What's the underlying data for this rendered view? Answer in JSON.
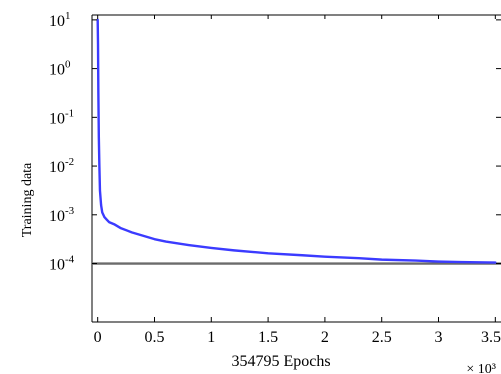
{
  "chart_data": {
    "type": "line",
    "ylabel": "Training data",
    "xlabel": "354795 Epochs",
    "x_multiplier_label": "× 10³",
    "x_scale": 1000,
    "y_scale": "log",
    "xlim": [
      -0.05,
      3.55
    ],
    "ylim_log10": [
      -5.2,
      1.1
    ],
    "x_ticks": [
      0,
      0.5,
      1,
      1.5,
      2,
      2.5,
      3,
      3.5
    ],
    "x_tick_labels": [
      "0",
      "0.5",
      "1",
      "1.5",
      "2",
      "2.5",
      "3",
      "3.5"
    ],
    "y_ticks_log10": [
      1,
      0,
      -1,
      -2,
      -3,
      -4
    ],
    "y_tick_labels": [
      {
        "base": "10",
        "exp": "1"
      },
      {
        "base": "10",
        "exp": "0"
      },
      {
        "base": "10",
        "exp": "-1"
      },
      {
        "base": "10",
        "exp": "-2"
      },
      {
        "base": "10",
        "exp": "-3"
      },
      {
        "base": "10",
        "exp": "-4"
      }
    ],
    "goal_log10": -4,
    "series": [
      {
        "color": "#3b3bff",
        "x": [
          0,
          0.003,
          0.006,
          0.01,
          0.015,
          0.02,
          0.03,
          0.04,
          0.06,
          0.08,
          0.1,
          0.15,
          0.2,
          0.3,
          0.4,
          0.5,
          0.6,
          0.8,
          1.0,
          1.2,
          1.5,
          1.8,
          2.0,
          2.3,
          2.5,
          2.8,
          3.0,
          3.2,
          3.5
        ],
        "y_log10": [
          1.0,
          0.5,
          -0.5,
          -1.4,
          -2.0,
          -2.5,
          -2.8,
          -2.95,
          -3.05,
          -3.1,
          -3.15,
          -3.2,
          -3.27,
          -3.36,
          -3.43,
          -3.5,
          -3.55,
          -3.62,
          -3.68,
          -3.73,
          -3.79,
          -3.83,
          -3.86,
          -3.89,
          -3.92,
          -3.94,
          -3.96,
          -3.97,
          -3.98
        ]
      }
    ],
    "colors": {
      "axis": "#000000",
      "series": "#3b3bff",
      "goal": "#6b6b6b"
    }
  }
}
